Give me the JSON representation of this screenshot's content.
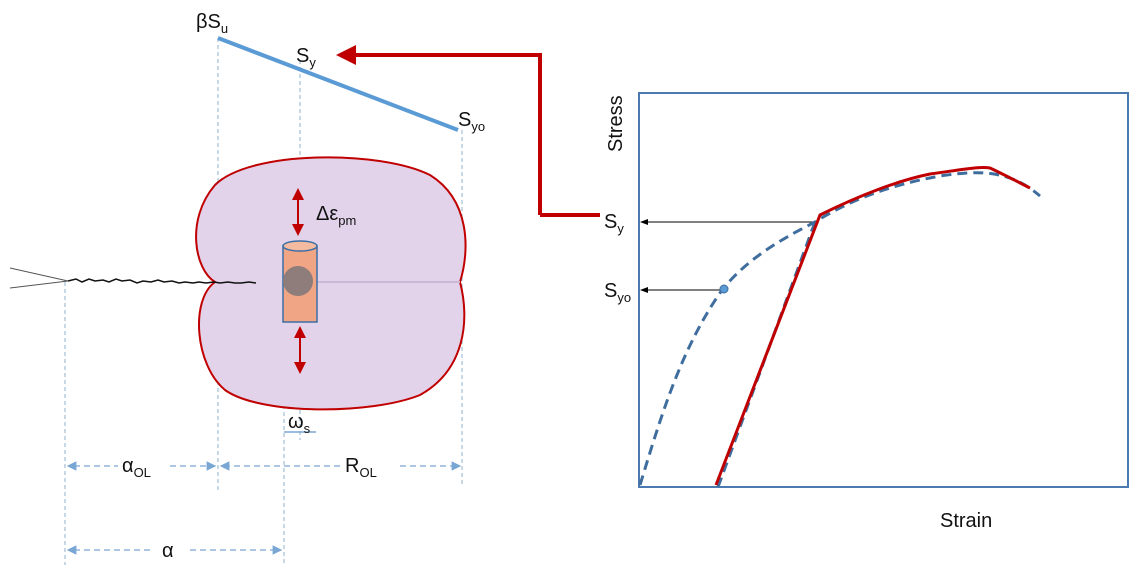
{
  "left_diagram": {
    "labels": [
      {
        "main": "βS",
        "sub": "u"
      },
      {
        "main": "S",
        "sub": "y"
      },
      {
        "main": "S",
        "sub": "yo"
      },
      {
        "main": "Δε",
        "sub": "pm"
      },
      {
        "main": "ω",
        "sub": "s"
      },
      {
        "main": "α",
        "sub": "OL"
      },
      {
        "main": "R",
        "sub": "OL"
      },
      {
        "main": "α"
      }
    ]
  },
  "stress_strain_chart": {
    "y_axis_label": "Stress",
    "x_axis_label": "Strain",
    "markers": [
      {
        "main": "S",
        "sub": "y"
      },
      {
        "main": "S",
        "sub": "yo"
      }
    ]
  }
}
